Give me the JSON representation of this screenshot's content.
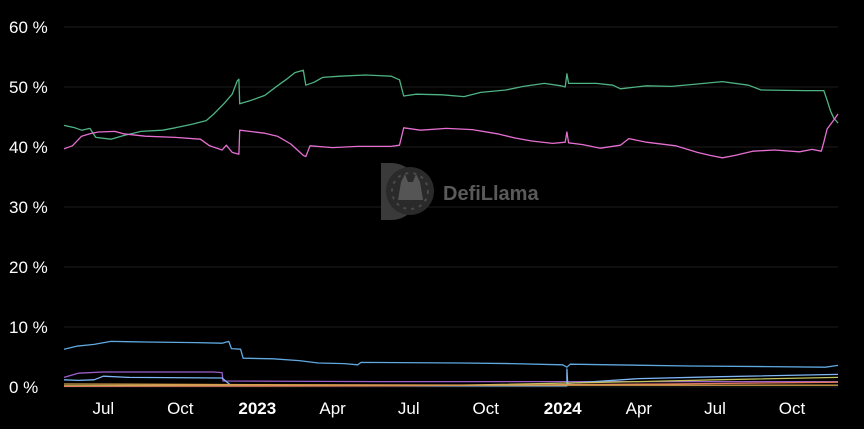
{
  "watermark": {
    "text": "DefiLlama",
    "icon": "llama-logo-icon"
  },
  "chart_data": {
    "type": "line",
    "title": "",
    "xlabel": "",
    "ylabel": "",
    "y_unit": "%",
    "ylim": [
      0,
      60
    ],
    "xlim": [
      "2022-05-15",
      "2024-11-25"
    ],
    "grid": true,
    "y_ticks": [
      {
        "value": 0,
        "label": "0 %"
      },
      {
        "value": 10,
        "label": "10 %"
      },
      {
        "value": 20,
        "label": "20 %"
      },
      {
        "value": 30,
        "label": "30 %"
      },
      {
        "value": 40,
        "label": "40 %"
      },
      {
        "value": 50,
        "label": "50 %"
      },
      {
        "value": 60,
        "label": "60 %"
      }
    ],
    "x_ticks": [
      {
        "date": "2022-07-01",
        "label": "Jul",
        "bold": false
      },
      {
        "date": "2022-10-01",
        "label": "Oct",
        "bold": false
      },
      {
        "date": "2023-01-01",
        "label": "2023",
        "bold": true
      },
      {
        "date": "2023-04-01",
        "label": "Apr",
        "bold": false
      },
      {
        "date": "2023-07-01",
        "label": "Jul",
        "bold": false
      },
      {
        "date": "2023-10-01",
        "label": "Oct",
        "bold": false
      },
      {
        "date": "2024-01-01",
        "label": "2024",
        "bold": true
      },
      {
        "date": "2024-04-01",
        "label": "Apr",
        "bold": false
      },
      {
        "date": "2024-07-01",
        "label": "Jul",
        "bold": false
      },
      {
        "date": "2024-10-01",
        "label": "Oct",
        "bold": false
      }
    ],
    "series": [
      {
        "color": "#4fb383",
        "points": [
          [
            "2022-05-15",
            43.6
          ],
          [
            "2022-05-28",
            43.2
          ],
          [
            "2022-06-05",
            42.8
          ],
          [
            "2022-06-15",
            43.1
          ],
          [
            "2022-06-22",
            41.6
          ],
          [
            "2022-07-10",
            41.3
          ],
          [
            "2022-07-25",
            41.9
          ],
          [
            "2022-08-15",
            42.6
          ],
          [
            "2022-09-10",
            42.8
          ],
          [
            "2022-09-25",
            43.2
          ],
          [
            "2022-10-15",
            43.8
          ],
          [
            "2022-11-01",
            44.4
          ],
          [
            "2022-11-10",
            45.5
          ],
          [
            "2022-11-22",
            47.2
          ],
          [
            "2022-12-02",
            48.8
          ],
          [
            "2022-12-08",
            51.0
          ],
          [
            "2022-12-10",
            51.3
          ],
          [
            "2022-12-11",
            47.2
          ],
          [
            "2022-12-25",
            47.8
          ],
          [
            "2023-01-10",
            48.6
          ],
          [
            "2023-01-25",
            50.2
          ],
          [
            "2023-02-05",
            51.3
          ],
          [
            "2023-02-15",
            52.4
          ],
          [
            "2023-02-25",
            52.8
          ],
          [
            "2023-02-28",
            50.3
          ],
          [
            "2023-03-10",
            50.8
          ],
          [
            "2023-03-20",
            51.6
          ],
          [
            "2023-04-10",
            51.8
          ],
          [
            "2023-05-10",
            52.0
          ],
          [
            "2023-06-10",
            51.8
          ],
          [
            "2023-06-20",
            51.2
          ],
          [
            "2023-06-25",
            48.5
          ],
          [
            "2023-07-10",
            48.8
          ],
          [
            "2023-08-10",
            48.7
          ],
          [
            "2023-09-05",
            48.4
          ],
          [
            "2023-09-25",
            49.1
          ],
          [
            "2023-10-25",
            49.5
          ],
          [
            "2023-11-15",
            50.1
          ],
          [
            "2023-12-10",
            50.6
          ],
          [
            "2023-12-30",
            50.2
          ],
          [
            "2024-01-04",
            50.0
          ],
          [
            "2024-01-06",
            52.2
          ],
          [
            "2024-01-08",
            50.6
          ],
          [
            "2024-02-10",
            50.6
          ],
          [
            "2024-03-01",
            50.3
          ],
          [
            "2024-03-10",
            49.7
          ],
          [
            "2024-04-10",
            50.2
          ],
          [
            "2024-05-10",
            50.1
          ],
          [
            "2024-06-10",
            50.5
          ],
          [
            "2024-07-10",
            50.9
          ],
          [
            "2024-08-10",
            50.3
          ],
          [
            "2024-08-25",
            49.5
          ],
          [
            "2024-10-15",
            49.4
          ],
          [
            "2024-11-08",
            49.4
          ],
          [
            "2024-11-12",
            47.8
          ],
          [
            "2024-11-16",
            46.0
          ],
          [
            "2024-11-20",
            44.8
          ],
          [
            "2024-11-25",
            44.0
          ]
        ]
      },
      {
        "color": "#e56fd1",
        "points": [
          [
            "2022-05-15",
            39.7
          ],
          [
            "2022-05-25",
            40.2
          ],
          [
            "2022-06-05",
            41.8
          ],
          [
            "2022-06-15",
            42.2
          ],
          [
            "2022-06-25",
            42.5
          ],
          [
            "2022-07-15",
            42.6
          ],
          [
            "2022-07-25",
            42.2
          ],
          [
            "2022-08-20",
            41.8
          ],
          [
            "2022-09-25",
            41.6
          ],
          [
            "2022-10-25",
            41.3
          ],
          [
            "2022-11-05",
            40.2
          ],
          [
            "2022-11-20",
            39.5
          ],
          [
            "2022-11-25",
            40.3
          ],
          [
            "2022-12-02",
            39.1
          ],
          [
            "2022-12-10",
            38.8
          ],
          [
            "2022-12-11",
            42.8
          ],
          [
            "2023-01-10",
            42.3
          ],
          [
            "2023-01-25",
            41.8
          ],
          [
            "2023-02-10",
            40.5
          ],
          [
            "2023-02-25",
            38.6
          ],
          [
            "2023-02-28",
            38.4
          ],
          [
            "2023-03-05",
            40.2
          ],
          [
            "2023-04-01",
            39.9
          ],
          [
            "2023-05-01",
            40.1
          ],
          [
            "2023-06-10",
            40.1
          ],
          [
            "2023-06-20",
            40.3
          ],
          [
            "2023-06-25",
            43.2
          ],
          [
            "2023-07-15",
            42.8
          ],
          [
            "2023-08-15",
            43.1
          ],
          [
            "2023-09-15",
            42.9
          ],
          [
            "2023-10-15",
            42.2
          ],
          [
            "2023-11-05",
            41.5
          ],
          [
            "2023-11-25",
            41.0
          ],
          [
            "2023-12-20",
            40.6
          ],
          [
            "2024-01-04",
            40.8
          ],
          [
            "2024-01-06",
            42.5
          ],
          [
            "2024-01-08",
            40.7
          ],
          [
            "2024-01-25",
            40.4
          ],
          [
            "2024-02-15",
            39.8
          ],
          [
            "2024-03-10",
            40.3
          ],
          [
            "2024-03-20",
            41.4
          ],
          [
            "2024-04-10",
            40.8
          ],
          [
            "2024-05-15",
            40.2
          ],
          [
            "2024-06-10",
            39.1
          ],
          [
            "2024-06-25",
            38.6
          ],
          [
            "2024-07-10",
            38.2
          ],
          [
            "2024-07-25",
            38.6
          ],
          [
            "2024-08-15",
            39.3
          ],
          [
            "2024-09-10",
            39.5
          ],
          [
            "2024-10-10",
            39.2
          ],
          [
            "2024-10-25",
            39.6
          ],
          [
            "2024-11-05",
            39.3
          ],
          [
            "2024-11-08",
            40.8
          ],
          [
            "2024-11-12",
            43.0
          ],
          [
            "2024-11-20",
            44.5
          ],
          [
            "2024-11-25",
            45.5
          ]
        ]
      },
      {
        "color": "#5fa9e0",
        "points": [
          [
            "2022-05-15",
            6.3
          ],
          [
            "2022-05-30",
            6.8
          ],
          [
            "2022-06-20",
            7.1
          ],
          [
            "2022-07-10",
            7.6
          ],
          [
            "2022-08-20",
            7.5
          ],
          [
            "2022-10-20",
            7.4
          ],
          [
            "2022-11-20",
            7.3
          ],
          [
            "2022-11-28",
            7.6
          ],
          [
            "2022-12-01",
            6.4
          ],
          [
            "2022-12-12",
            6.3
          ],
          [
            "2022-12-15",
            4.8
          ],
          [
            "2023-01-20",
            4.7
          ],
          [
            "2023-02-20",
            4.4
          ],
          [
            "2023-03-15",
            4.0
          ],
          [
            "2023-04-15",
            3.9
          ],
          [
            "2023-05-01",
            3.7
          ],
          [
            "2023-05-05",
            4.1
          ],
          [
            "2023-09-01",
            4.0
          ],
          [
            "2023-11-01",
            3.9
          ],
          [
            "2024-01-01",
            3.7
          ],
          [
            "2024-01-06",
            3.3
          ],
          [
            "2024-01-10",
            3.8
          ],
          [
            "2024-06-01",
            3.5
          ],
          [
            "2024-09-01",
            3.4
          ],
          [
            "2024-11-10",
            3.3
          ],
          [
            "2024-11-25",
            3.6
          ]
        ]
      },
      {
        "color": "#9b5fc9",
        "points": [
          [
            "2022-05-15",
            1.6
          ],
          [
            "2022-06-01",
            2.3
          ],
          [
            "2022-07-01",
            2.5
          ],
          [
            "2022-11-10",
            2.5
          ],
          [
            "2022-11-20",
            2.4
          ],
          [
            "2022-11-21",
            1.0
          ],
          [
            "2023-06-01",
            0.9
          ],
          [
            "2024-11-25",
            0.9
          ]
        ]
      },
      {
        "color": "#7fb6f5",
        "points": [
          [
            "2022-05-15",
            1.2
          ],
          [
            "2022-06-01",
            1.1
          ],
          [
            "2022-06-20",
            1.2
          ],
          [
            "2022-07-01",
            1.8
          ],
          [
            "2022-08-01",
            1.6
          ],
          [
            "2022-11-20",
            1.5
          ],
          [
            "2022-12-01",
            0.2
          ],
          [
            "2024-01-06",
            0.2
          ],
          [
            "2024-01-06",
            3.0
          ],
          [
            "2024-01-07",
            0.6
          ],
          [
            "2024-04-01",
            1.4
          ],
          [
            "2024-07-01",
            1.7
          ],
          [
            "2024-11-25",
            2.1
          ]
        ]
      },
      {
        "color": "#c2c45a",
        "points": [
          [
            "2022-05-15",
            0.2
          ],
          [
            "2023-09-01",
            0.3
          ],
          [
            "2024-04-01",
            0.9
          ],
          [
            "2024-07-01",
            1.2
          ],
          [
            "2024-11-25",
            1.6
          ]
        ]
      },
      {
        "color": "#e27b5e",
        "points": [
          [
            "2022-05-15",
            0.1
          ],
          [
            "2023-06-01",
            0.2
          ],
          [
            "2024-05-01",
            0.5
          ],
          [
            "2024-11-25",
            0.8
          ]
        ]
      },
      {
        "color": "#d4a04c",
        "points": [
          [
            "2022-05-15",
            0.5
          ],
          [
            "2023-01-01",
            0.4
          ],
          [
            "2024-01-01",
            0.3
          ],
          [
            "2024-11-25",
            0.3
          ]
        ]
      }
    ]
  }
}
